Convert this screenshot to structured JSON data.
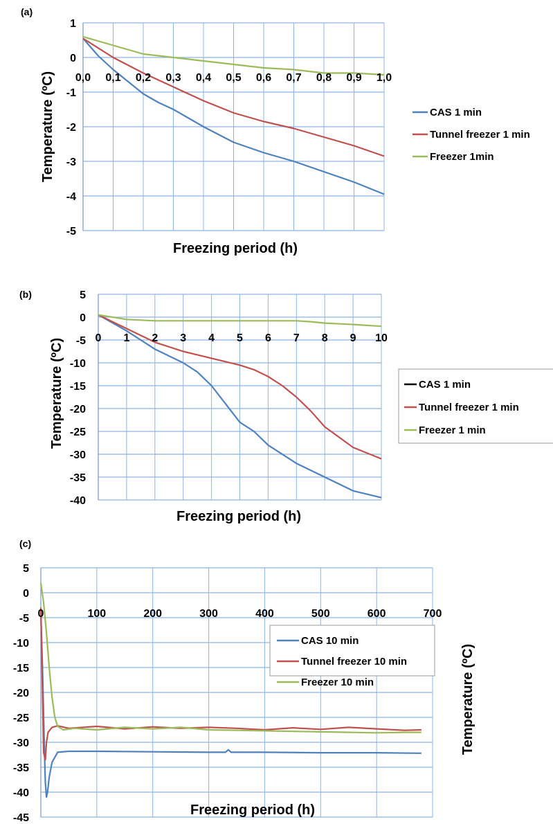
{
  "chart_data": [
    {
      "panel_label": "(a)",
      "type": "line",
      "xlabel": "Freezing period (h)",
      "ylabel": "Temperature (ºC)",
      "xlim": [
        0,
        1.0
      ],
      "ylim": [
        -5,
        1
      ],
      "x_ticks": [
        "0,0",
        "0,1",
        "0,2",
        "0,3",
        "0,4",
        "0,5",
        "0,6",
        "0,7",
        "0,8",
        "0,9",
        "1,0"
      ],
      "y_ticks": [
        "1",
        "0",
        "-1",
        "-2",
        "-3",
        "-4",
        "-5"
      ],
      "grid": true,
      "legend_position": "right",
      "series": [
        {
          "name": "CAS 1 min",
          "color": "#4f81bd",
          "x": [
            0,
            0.05,
            0.1,
            0.15,
            0.2,
            0.25,
            0.3,
            0.35,
            0.4,
            0.5,
            0.6,
            0.7,
            0.8,
            0.9,
            1.0
          ],
          "y": [
            0.55,
            0.05,
            -0.35,
            -0.7,
            -1.05,
            -1.3,
            -1.5,
            -1.75,
            -2.0,
            -2.45,
            -2.75,
            -3.0,
            -3.3,
            -3.6,
            -3.95
          ]
        },
        {
          "name": "Tunnel freezer 1 min",
          "color": "#c0504d",
          "x": [
            0,
            0.1,
            0.2,
            0.3,
            0.4,
            0.5,
            0.6,
            0.7,
            0.8,
            0.9,
            1.0
          ],
          "y": [
            0.55,
            0.0,
            -0.45,
            -0.85,
            -1.25,
            -1.6,
            -1.85,
            -2.05,
            -2.3,
            -2.55,
            -2.85
          ]
        },
        {
          "name": "Freezer 1min",
          "color": "#9bbb59",
          "x": [
            0,
            0.1,
            0.2,
            0.3,
            0.4,
            0.5,
            0.6,
            0.7,
            0.8,
            0.9,
            1.0
          ],
          "y": [
            0.6,
            0.35,
            0.1,
            0.0,
            -0.1,
            -0.2,
            -0.3,
            -0.35,
            -0.45,
            -0.45,
            -0.5
          ]
        }
      ]
    },
    {
      "panel_label": "(b)",
      "type": "line",
      "xlabel": "Freezing period (h)",
      "ylabel": "Temperature (ºC)",
      "xlim": [
        0,
        10
      ],
      "ylim": [
        -40,
        5
      ],
      "x_ticks": [
        "0",
        "1",
        "2",
        "3",
        "4",
        "5",
        "6",
        "7",
        "8",
        "9",
        "10"
      ],
      "y_ticks": [
        "5",
        "0",
        "-5",
        "-10",
        "-15",
        "-20",
        "-25",
        "-30",
        "-35",
        "-40"
      ],
      "grid": true,
      "legend_position": "right",
      "series": [
        {
          "name": "CAS 1 min",
          "color": "#4f81bd",
          "legend_color": "#000000",
          "x": [
            0,
            1,
            2,
            3,
            3.5,
            4,
            4.5,
            5,
            5.5,
            6,
            7,
            8,
            9,
            10
          ],
          "y": [
            0.5,
            -3,
            -7,
            -10,
            -12,
            -15,
            -19,
            -23,
            -25,
            -28,
            -32,
            -35,
            -38,
            -39.5
          ]
        },
        {
          "name": "Tunnel freezer 1 min",
          "color": "#c0504d",
          "x": [
            0,
            1,
            2,
            3,
            4,
            5,
            5.5,
            6,
            6.5,
            7,
            7.5,
            8,
            9,
            10
          ],
          "y": [
            0.5,
            -2.5,
            -5.5,
            -7.5,
            -9,
            -10.5,
            -11.5,
            -13,
            -15,
            -17.5,
            -20.5,
            -24,
            -28.5,
            -31
          ]
        },
        {
          "name": "Freezer 1 min",
          "color": "#9bbb59",
          "x": [
            0,
            1,
            2,
            3,
            4,
            5,
            6,
            7,
            7.5,
            8,
            9,
            10
          ],
          "y": [
            0.5,
            -0.5,
            -0.8,
            -0.8,
            -0.8,
            -0.8,
            -0.8,
            -0.8,
            -1.0,
            -1.3,
            -1.6,
            -2.0
          ]
        }
      ]
    },
    {
      "panel_label": "(c)",
      "type": "line",
      "xlabel": "Freezing period (h)",
      "ylabel": "Temperature (ºC)",
      "xlim": [
        0,
        700
      ],
      "ylim": [
        -45,
        5
      ],
      "x_ticks": [
        "0",
        "100",
        "200",
        "300",
        "400",
        "500",
        "600",
        "700"
      ],
      "y_ticks": [
        "5",
        "0",
        "-5",
        "-10",
        "-15",
        "-20",
        "-25",
        "-30",
        "-35",
        "-40",
        "-45"
      ],
      "grid": true,
      "legend_position": "top-right",
      "series": [
        {
          "name": "CAS 10 min",
          "color": "#4f81bd",
          "x": [
            0,
            3,
            6,
            8,
            10,
            12,
            15,
            20,
            30,
            50,
            100,
            200,
            300,
            330,
            335,
            340,
            400,
            500,
            600,
            680
          ],
          "y": [
            -4,
            -15,
            -30,
            -38,
            -41,
            -40,
            -37,
            -34,
            -32,
            -31.8,
            -31.8,
            -31.9,
            -32,
            -32,
            -31.5,
            -32,
            -32,
            -32.1,
            -32.1,
            -32.2
          ]
        },
        {
          "name": "Tunnel freezer 10 min",
          "color": "#c0504d",
          "x": [
            0,
            3,
            5,
            8,
            10,
            13,
            20,
            30,
            50,
            100,
            150,
            200,
            250,
            300,
            350,
            400,
            450,
            500,
            550,
            600,
            650,
            680
          ],
          "y": [
            -3,
            -20,
            -32,
            -33.5,
            -30,
            -28,
            -27,
            -26.7,
            -27.2,
            -26.8,
            -27.3,
            -26.9,
            -27.2,
            -27,
            -27.2,
            -27.5,
            -27.1,
            -27.4,
            -27,
            -27.3,
            -27.6,
            -27.5
          ]
        },
        {
          "name": "Freezer 10 min",
          "color": "#9bbb59",
          "x": [
            0,
            5,
            10,
            15,
            20,
            25,
            30,
            40,
            60,
            100,
            150,
            200,
            250,
            300,
            350,
            400,
            450,
            500,
            550,
            600,
            650,
            680
          ],
          "y": [
            2,
            -2,
            -8,
            -15,
            -21,
            -25,
            -26.8,
            -27.5,
            -27.2,
            -27.5,
            -27,
            -27.3,
            -27,
            -27.5,
            -27.6,
            -27.7,
            -27.8,
            -27.9,
            -28,
            -28.1,
            -28,
            -28
          ]
        }
      ]
    }
  ]
}
